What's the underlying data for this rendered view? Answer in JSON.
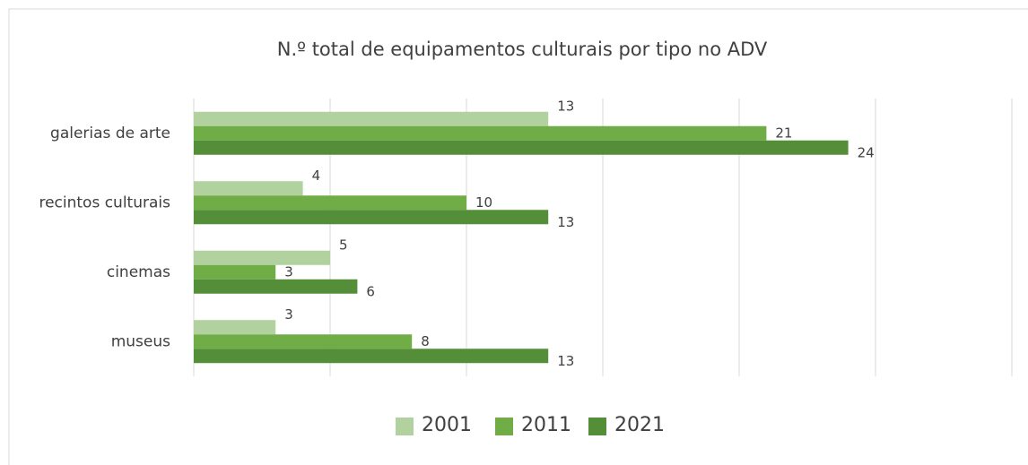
{
  "chart_data": {
    "type": "hbar",
    "title": "N.º total de equipamentos culturais por tipo no ADV",
    "categories": [
      "galerias de arte",
      "recintos culturais",
      "cinemas",
      "museus"
    ],
    "series": [
      {
        "name": "2001",
        "color": "#b1d19f",
        "values": [
          13,
          4,
          5,
          3
        ]
      },
      {
        "name": "2011",
        "color": "#70ad47",
        "values": [
          21,
          10,
          3,
          8
        ]
      },
      {
        "name": "2021",
        "color": "#548e38",
        "values": [
          24,
          13,
          6,
          13
        ]
      }
    ],
    "xlim": [
      0,
      30
    ],
    "xticks": [
      0,
      5,
      10,
      15,
      20,
      25,
      30
    ],
    "grid": true,
    "legend": "bottom"
  }
}
